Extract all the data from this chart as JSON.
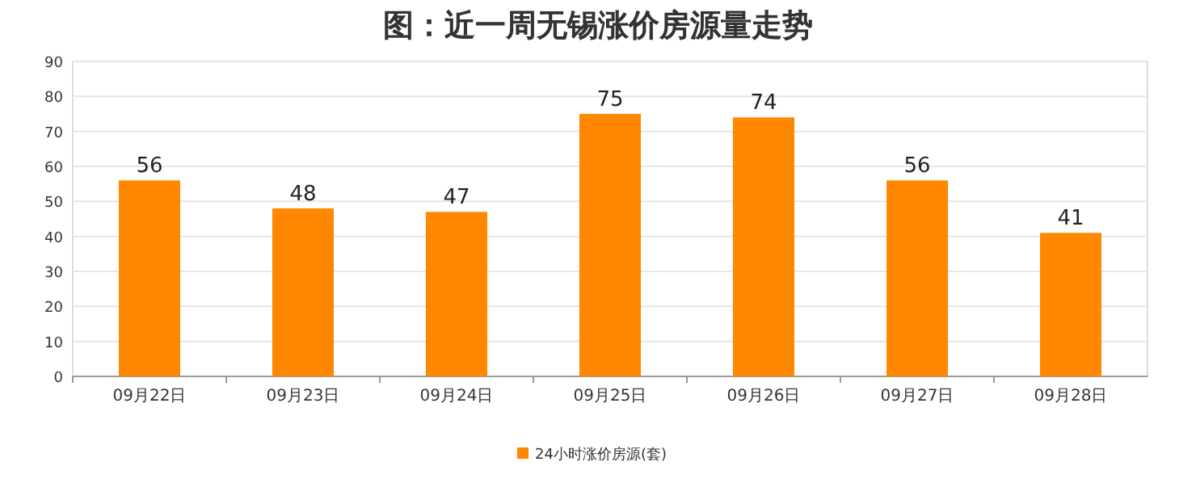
{
  "chart_data": {
    "type": "bar",
    "title": "图：近一周无锡涨价房源量走势",
    "categories": [
      "09月22日",
      "09月23日",
      "09月24日",
      "09月25日",
      "09月26日",
      "09月27日",
      "09月28日"
    ],
    "series": [
      {
        "name": "24小时涨价房源(套)",
        "color": "#ff8800",
        "values": [
          56,
          48,
          47,
          75,
          74,
          56,
          41
        ]
      }
    ],
    "ylim": [
      0,
      90
    ],
    "yticks": [
      0,
      10,
      20,
      30,
      40,
      50,
      60,
      70,
      80,
      90
    ],
    "grid": "y",
    "legend": "bottom",
    "data_labels": true
  }
}
